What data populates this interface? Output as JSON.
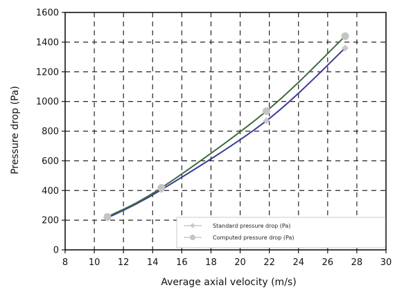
{
  "chart_data": {
    "type": "line",
    "title": "",
    "xlabel": "Average axial velocity (m/s)",
    "ylabel": "Pressure drop (Pa)",
    "xlim": [
      8,
      30
    ],
    "ylim": [
      0,
      1600
    ],
    "xticks": [
      8,
      10,
      12,
      14,
      16,
      18,
      20,
      22,
      24,
      26,
      28,
      30
    ],
    "yticks": [
      0,
      200,
      400,
      600,
      800,
      1000,
      1200,
      1400,
      1600
    ],
    "grid": true,
    "legend_position": "bottom-right",
    "series": [
      {
        "name": "Standard pressure drop (Pa)",
        "color": "#3a3a9a",
        "marker": "diamond",
        "marker_color": "#c8c8c8",
        "points": [
          [
            10.9,
            215
          ],
          [
            14.6,
            405
          ],
          [
            21.8,
            870
          ],
          [
            27.2,
            1360
          ]
        ]
      },
      {
        "name": "Computed pressure drop (Pa)",
        "color": "#3d6b3d",
        "marker": "circle",
        "marker_color": "#c4c4c4",
        "points": [
          [
            10.9,
            222
          ],
          [
            14.6,
            418
          ],
          [
            21.8,
            935
          ],
          [
            27.2,
            1440
          ]
        ]
      }
    ]
  }
}
